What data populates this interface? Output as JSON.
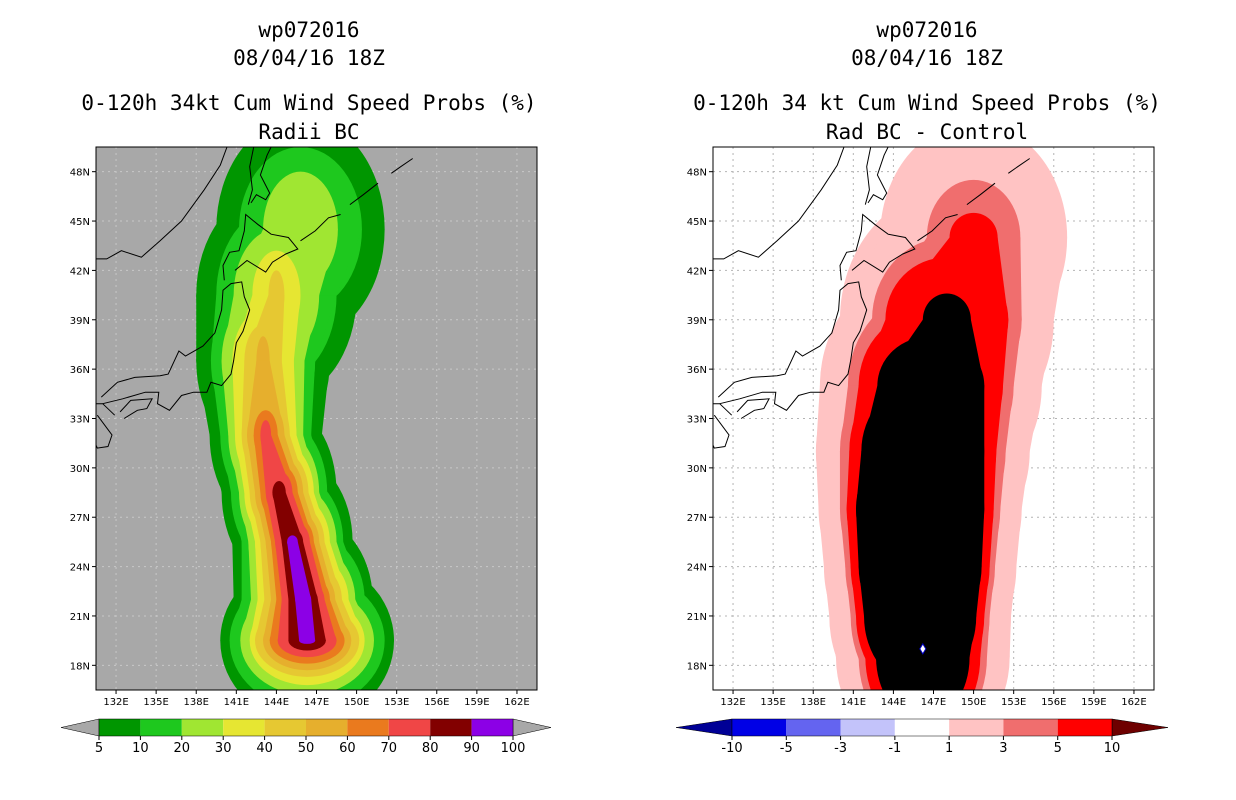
{
  "panels": [
    {
      "storm_id": "wp072016",
      "datetime": "08/04/16 18Z",
      "title": "0-120h 34kt Cum Wind Speed Probs (%)",
      "subtitle": "Radii BC"
    },
    {
      "storm_id": "wp072016",
      "datetime": "08/04/16 18Z",
      "title": "0-120h 34 kt Cum Wind Speed Probs (%)",
      "subtitle": "Rad BC - Control"
    }
  ],
  "chart_data": [
    {
      "type": "heatmap",
      "storm": "wp072016",
      "title": "0-120h 34kt Cum Wind Speed Probs (%)",
      "subtitle": "Radii BC",
      "x_ticks": [
        "132E",
        "135E",
        "138E",
        "141E",
        "144E",
        "147E",
        "150E",
        "153E",
        "156E",
        "159E",
        "162E"
      ],
      "y_ticks": [
        "18N",
        "21N",
        "24N",
        "27N",
        "30N",
        "33N",
        "36N",
        "39N",
        "42N",
        "45N",
        "48N"
      ],
      "xlim": [
        130.5,
        163.5
      ],
      "ylim": [
        16.5,
        49.5
      ],
      "background_color": "#a8a8a8",
      "levels": [
        5,
        10,
        20,
        30,
        40,
        50,
        60,
        70,
        80,
        90,
        100
      ],
      "colorbar_labels": [
        "5",
        "10",
        "20",
        "30",
        "40",
        "50",
        "60",
        "70",
        "80",
        "90",
        "100"
      ],
      "colors": [
        "#009600",
        "#1ec81e",
        "#a0e632",
        "#e6e632",
        "#e6c832",
        "#e6af2d",
        "#ea7a1e",
        "#f04646",
        "#820000",
        "#8c00e6"
      ],
      "extend_left_color": "#a8a8a8",
      "extend_right_color": "#a8a8a8",
      "track_center": [
        {
          "lon": 146.3,
          "lat": 19.5
        },
        {
          "lon": 146.0,
          "lat": 22.0
        },
        {
          "lon": 145.2,
          "lat": 25.5
        },
        {
          "lon": 144.2,
          "lat": 28.5
        },
        {
          "lon": 143.2,
          "lat": 32.0
        },
        {
          "lon": 143.0,
          "lat": 36.5
        },
        {
          "lon": 144.0,
          "lat": 40.5
        },
        {
          "lon": 145.8,
          "lat": 44.5
        }
      ],
      "contours": [
        {
          "level": 5,
          "a": [
            6.5,
            5.2,
            4.5,
            4.3,
            4.2,
            5.0,
            6.0,
            6.3
          ],
          "b": [
            5.0,
            5.2,
            5.2,
            5.4,
            5.4,
            5.8,
            6.5,
            6.8
          ]
        },
        {
          "level": 10,
          "a": [
            5.8,
            4.6,
            3.8,
            3.6,
            3.4,
            3.9,
            4.5,
            4.6
          ],
          "b": [
            4.1,
            4.2,
            4.2,
            4.5,
            4.5,
            4.8,
            5.3,
            5.0
          ]
        },
        {
          "level": 20,
          "a": [
            5.0,
            3.9,
            3.3,
            3.0,
            2.8,
            3.1,
            3.2,
            2.8
          ],
          "b": [
            3.3,
            3.5,
            3.5,
            3.8,
            3.8,
            4.0,
            4.0,
            3.5
          ]
        },
        {
          "level": 30,
          "a": [
            4.3,
            3.4,
            2.8,
            2.6,
            2.3,
            2.3,
            1.8,
            0.0
          ],
          "b": [
            2.7,
            2.9,
            2.9,
            3.1,
            3.1,
            3.1,
            2.7,
            0.0
          ]
        },
        {
          "level": 40,
          "a": [
            3.9,
            2.9,
            2.4,
            2.2,
            1.8,
            1.4,
            0.6,
            0.0
          ],
          "b": [
            2.2,
            2.4,
            2.4,
            2.6,
            2.5,
            2.2,
            1.5,
            0.0
          ]
        },
        {
          "level": 50,
          "a": [
            3.3,
            2.4,
            2.0,
            1.8,
            1.4,
            0.5,
            0.0,
            0.0
          ],
          "b": [
            1.8,
            2.0,
            2.0,
            2.2,
            2.0,
            1.5,
            0.0,
            0.0
          ]
        },
        {
          "level": 60,
          "a": [
            2.8,
            2.0,
            1.6,
            1.4,
            0.9,
            0.0,
            0.0,
            0.0
          ],
          "b": [
            1.4,
            1.6,
            1.6,
            1.7,
            1.5,
            0.3,
            0.0,
            0.0
          ]
        },
        {
          "level": 70,
          "a": [
            2.2,
            1.6,
            1.3,
            1.0,
            0.4,
            0.0,
            0.0,
            0.0
          ],
          "b": [
            1.0,
            1.2,
            1.3,
            1.3,
            0.9,
            0.0,
            0.0,
            0.0
          ]
        },
        {
          "level": 80,
          "a": [
            1.4,
            1.1,
            0.8,
            0.5,
            0.0,
            0.0,
            0.0,
            0.0
          ],
          "b": [
            0.6,
            0.8,
            0.8,
            0.7,
            0.2,
            0.0,
            0.0,
            0.0
          ]
        },
        {
          "level": 90,
          "a": [
            0.6,
            0.6,
            0.4,
            0.0,
            0.0,
            0.0,
            0.0,
            0.0
          ],
          "b": [
            0.2,
            0.5,
            0.4,
            0.0,
            0.0,
            0.0,
            0.0,
            0.0
          ]
        }
      ]
    },
    {
      "type": "heatmap",
      "storm": "wp072016",
      "title": "0-120h 34 kt Cum Wind Speed Probs (%)",
      "subtitle": "Rad BC - Control",
      "x_ticks": [
        "132E",
        "135E",
        "138E",
        "141E",
        "144E",
        "147E",
        "150E",
        "153E",
        "156E",
        "159E",
        "162E"
      ],
      "y_ticks": [
        "18N",
        "21N",
        "24N",
        "27N",
        "30N",
        "33N",
        "36N",
        "39N",
        "42N",
        "45N",
        "48N"
      ],
      "xlim": [
        130.5,
        163.5
      ],
      "ylim": [
        16.5,
        49.5
      ],
      "grid": true,
      "background_color": "#ffffff",
      "levels": [
        -10,
        -5,
        -3,
        -1,
        1,
        3,
        5,
        10
      ],
      "colorbar_labels": [
        "-10",
        "-5",
        "-3",
        "-1",
        "1",
        "3",
        "5",
        "10"
      ],
      "colors": [
        "#0000e6",
        "#6464f0",
        "#c3c3fa",
        "#ffffff",
        "#ffc3c3",
        "#f06e6e",
        "#ff0000"
      ],
      "extend_left_color": "#000096",
      "extend_right_color": "#6e0000",
      "track_center": [
        {
          "lon": 146.2,
          "lat": 18.5
        },
        {
          "lon": 146.0,
          "lat": 21.0
        },
        {
          "lon": 146.0,
          "lat": 24.0
        },
        {
          "lon": 146.0,
          "lat": 27.5
        },
        {
          "lon": 146.2,
          "lat": 31.0
        },
        {
          "lon": 146.8,
          "lat": 35.0
        },
        {
          "lon": 148.0,
          "lat": 39.0
        },
        {
          "lon": 150.0,
          "lat": 44.0
        }
      ],
      "contours": [
        {
          "level": 1,
          "a": [
            6.5,
            6.8,
            7.2,
            7.6,
            8.0,
            8.3,
            8.0,
            7.0
          ],
          "b": [
            6.0,
            6.5,
            6.8,
            6.8,
            7.0,
            7.4,
            7.8,
            7.0
          ]
        },
        {
          "level": 3,
          "a": [
            4.8,
            5.2,
            5.6,
            6.0,
            6.2,
            6.2,
            5.6,
            3.5
          ],
          "b": [
            5.2,
            5.6,
            5.8,
            6.0,
            6.0,
            5.8,
            5.0,
            3.5
          ]
        },
        {
          "level": 5,
          "a": [
            4.3,
            4.8,
            5.2,
            5.5,
            5.5,
            5.4,
            4.6,
            1.8
          ],
          "b": [
            4.7,
            5.0,
            5.2,
            5.3,
            5.3,
            4.6,
            3.8,
            1.5
          ]
        },
        {
          "level": 10,
          "a": [
            3.5,
            4.2,
            4.6,
            4.8,
            4.6,
            4.0,
            1.8,
            0.0
          ],
          "b": [
            3.9,
            4.3,
            4.4,
            4.4,
            4.2,
            3.0,
            1.6,
            0.0
          ]
        }
      ],
      "point_marker": {
        "lon": 146.2,
        "lat": 19.0,
        "value_range": "-1 to 1"
      }
    }
  ]
}
